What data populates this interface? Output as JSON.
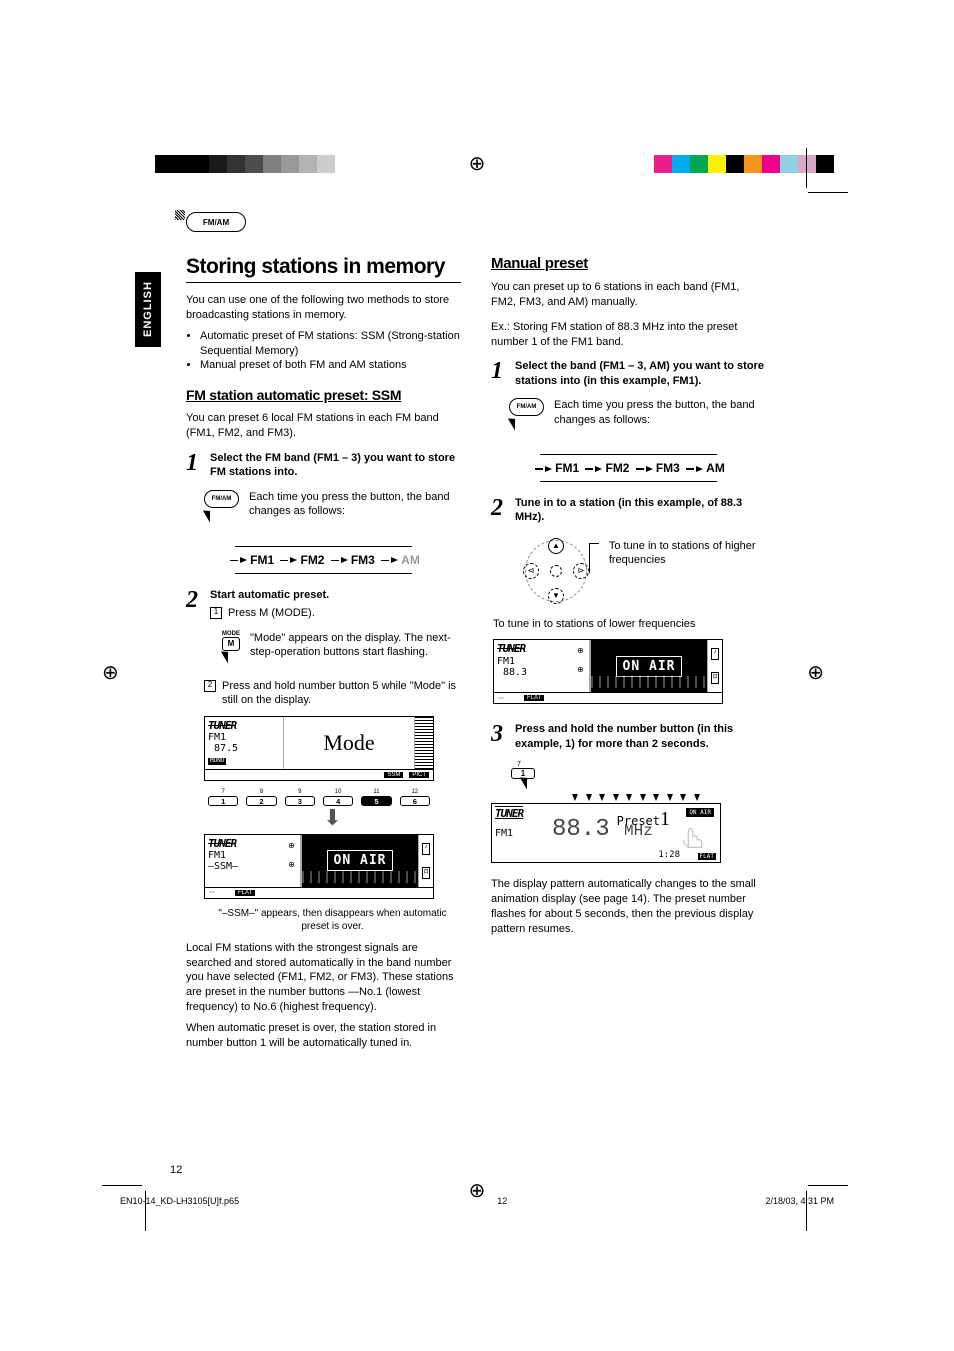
{
  "lang_tab": "ENGLISH",
  "fmam_badge": "FM/AM",
  "main_title": "Storing stations in memory",
  "intro": "You can use one of the following two methods to store broadcasting stations in memory.",
  "intro_bullets": [
    "Automatic preset of FM stations: SSM (Strong-station Sequential Memory)",
    "Manual preset of both FM and AM stations"
  ],
  "ssm": {
    "heading": "FM station automatic preset: SSM",
    "intro": "You can preset 6 local FM stations in each FM band (FM1, FM2, and FM3).",
    "step1_title": "Select the FM band (FM1 – 3) you want to store FM stations into.",
    "step1_desc": "Each time you press the button, the band changes as follows:",
    "btn_label": "FM/AM",
    "bands": {
      "fm1": "FM1",
      "fm2": "FM2",
      "fm3": "FM3",
      "am": "AM"
    },
    "step2_title": "Start automatic preset.",
    "step2_sub1": "Press M (MODE).",
    "step2_sub1_desc": "\"Mode\" appears on the display. The next-step-operation buttons start flashing.",
    "mode_label": "MODE",
    "m_label": "M",
    "step2_sub2": "Press and hold number button 5 while \"Mode\" is still on the display.",
    "display1": {
      "tuner": "TUNER",
      "band": "FM1",
      "freq": "87.5",
      "mono": "MONO",
      "mode_text": "Mode",
      "ssm": "SSM",
      "pict": "PICT",
      "nums_top": [
        "7",
        "8",
        "9",
        "10",
        "11",
        "12"
      ],
      "nums": [
        "1",
        "2",
        "3",
        "4",
        "5",
        "6"
      ]
    },
    "display2": {
      "tuner": "TUNER",
      "band": "FM1",
      "ssm": "–SSM–",
      "onair": "ON AIR",
      "flat": "FLAT"
    },
    "caption_ssm": "\"–SSM–\" appears, then disappears when automatic preset is over.",
    "para1": "Local FM stations with the strongest signals are searched and stored automatically in the band number you have selected (FM1, FM2, or FM3). These stations are preset in the number buttons —No.1 (lowest frequency) to No.6 (highest frequency).",
    "para2": "When automatic preset is over, the station stored in number button 1 will be automatically tuned in."
  },
  "manual": {
    "heading": "Manual preset",
    "intro": "You can preset up to 6 stations in each band (FM1, FM2, FM3, and AM) manually.",
    "example": "Ex.: Storing FM station of 88.3 MHz into the preset number 1 of the FM1 band.",
    "step1_title": "Select the band (FM1 – 3, AM) you want to store stations into (in this example, FM1).",
    "step1_desc": "Each time you press the button, the band changes as follows:",
    "btn_label": "FM/AM",
    "bands": {
      "fm1": "FM1",
      "fm2": "FM2",
      "fm3": "FM3",
      "am": "AM"
    },
    "step2_title": "Tune in to a station (in this example, of 88.3 MHz).",
    "ctrl_desc_high": "To tune in to stations of higher frequencies",
    "ctrl_desc_low": "To tune in to stations of lower frequencies",
    "display": {
      "tuner": "TUNER",
      "band": "FM1",
      "freq": "88.3",
      "onair": "ON AIR",
      "flat": "FLAT"
    },
    "step3_title": "Press and hold the number button (in this example, 1) for more than 2 seconds.",
    "num7": "7",
    "num1": "1",
    "preset_display": {
      "tuner": "TUNER",
      "band": "FM1",
      "preset": "Preset",
      "preset_num": "1",
      "freq": "88.3",
      "unit": "MHz",
      "onair": "ON AIR",
      "clock": "1:28",
      "flat": "FLAT"
    },
    "final": "The display pattern automatically changes to the small animation display (see page 14). The preset number flashes for about 5 seconds, then the previous display pattern resumes."
  },
  "page_num": "12",
  "footer_file": "EN10-14_KD-LH3105[U]f.p65",
  "footer_page": "12",
  "footer_date": "2/18/03, 4:31 PM",
  "color_bars_left": [
    "#000000",
    "#000000",
    "#000000",
    "#1a1a1a",
    "#333333",
    "#4d4d4d",
    "#808080",
    "#999999",
    "#b3b3b3",
    "#cccccc"
  ],
  "color_bars_right": [
    "#e91e8c",
    "#00aeef",
    "#00a651",
    "#fff200",
    "#000000",
    "#f7941d",
    "#ec008c",
    "#92d1e4",
    "#d8a8c4",
    "#000000"
  ]
}
